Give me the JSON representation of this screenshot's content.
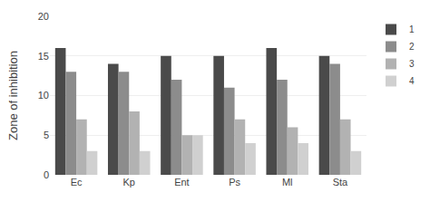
{
  "chart_data": {
    "type": "bar",
    "categories": [
      "Ec",
      "Kp",
      "Ent",
      "Ps",
      "Ml",
      "Sta"
    ],
    "series": [
      {
        "name": "1",
        "color": "#4a4a4a",
        "values": [
          16,
          14,
          15,
          15,
          16,
          15
        ]
      },
      {
        "name": "2",
        "color": "#8c8c8c",
        "values": [
          13,
          13,
          12,
          11,
          12,
          14
        ]
      },
      {
        "name": "3",
        "color": "#b2b2b2",
        "values": [
          7,
          8,
          5,
          7,
          6,
          7
        ]
      },
      {
        "name": "4",
        "color": "#d0d0d0",
        "values": [
          3,
          3,
          5,
          4,
          4,
          3
        ]
      }
    ],
    "ylabel": "Zone of inhibition",
    "ylim": [
      0,
      20
    ],
    "yticks": [
      0,
      5,
      10,
      15,
      20
    ],
    "grid": true,
    "legend": "upper right"
  }
}
